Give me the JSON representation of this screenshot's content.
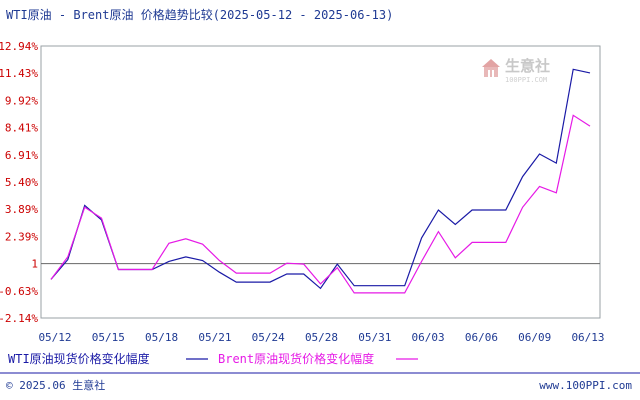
{
  "chart_data": {
    "type": "line",
    "title": "WTI原油 - Brent原油 价格趋势比较(2025-05-12 - 2025-06-13)",
    "y_ticks": [
      "12.94%",
      "11.43%",
      "9.92%",
      "8.41%",
      "6.91%",
      "5.40%",
      "3.89%",
      "2.39%",
      "1",
      "-0.63%",
      "-2.14%"
    ],
    "ylim": [
      -2.14,
      12.94
    ],
    "x_ticks": [
      "05/12",
      "05/15",
      "05/18",
      "05/21",
      "05/24",
      "05/28",
      "05/31",
      "06/03",
      "06/06",
      "06/09",
      "06/13"
    ],
    "grid": false,
    "legend": "bottom",
    "series": [
      {
        "name": "WTI原油现货价格变化幅度",
        "color": "#1a1aa6",
        "values": [
          0.0,
          1.1,
          4.1,
          3.3,
          0.55,
          0.55,
          0.55,
          1.0,
          1.25,
          1.05,
          0.4,
          -0.15,
          -0.15,
          -0.15,
          0.3,
          0.3,
          -0.5,
          0.85,
          -0.35,
          -0.35,
          -0.35,
          -0.35,
          2.3,
          3.85,
          3.05,
          3.85,
          3.85,
          3.85,
          5.7,
          6.95,
          6.45,
          11.65,
          11.45
        ]
      },
      {
        "name": "Brent原油现货价格变化幅度",
        "color": "#e61ae6",
        "values": [
          0.0,
          1.25,
          4.0,
          3.4,
          0.55,
          0.55,
          0.55,
          2.0,
          2.25,
          1.95,
          1.05,
          0.35,
          0.35,
          0.35,
          0.9,
          0.85,
          -0.25,
          0.65,
          -0.75,
          -0.75,
          -0.75,
          -0.75,
          1.0,
          2.65,
          1.2,
          2.05,
          2.05,
          2.05,
          4.0,
          5.15,
          4.8,
          9.1,
          8.5
        ]
      }
    ]
  },
  "watermark": {
    "brand": "生意社",
    "site": "100PPI.COM"
  },
  "footer": {
    "left": "© 2025.06 生意社",
    "right": "www.100PPI.com"
  }
}
